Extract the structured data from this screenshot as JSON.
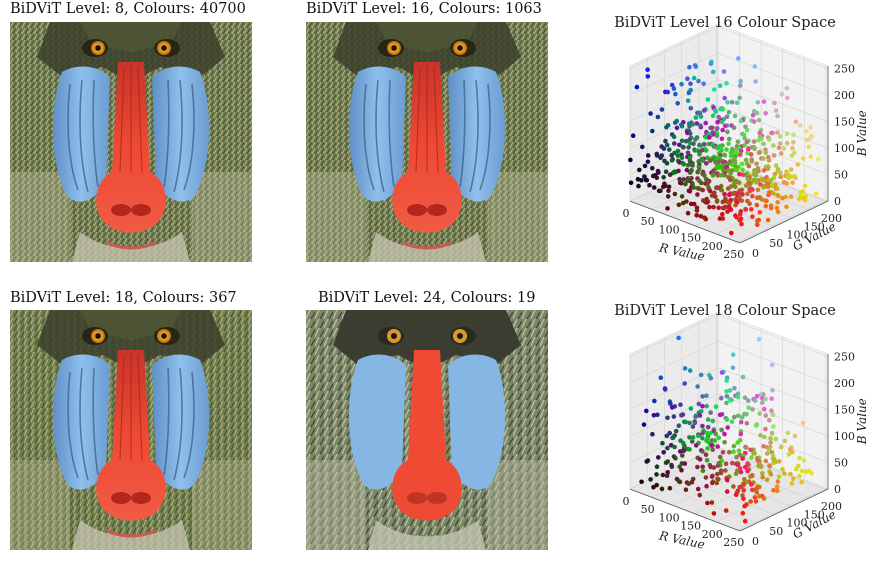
{
  "panels": [
    {
      "title": "BiDViT Level: 8, Colours: 40700",
      "variant": "fine"
    },
    {
      "title": "BiDViT Level: 16, Colours: 1063",
      "variant": "fine"
    },
    {
      "title": "BiDViT Level: 18, Colours: 367",
      "variant": "medium"
    },
    {
      "title": "BiDViT Level: 24, Colours: 19",
      "variant": "flat"
    }
  ],
  "colour_spaces": [
    {
      "title": "BiDViT Level 16 Colour Space",
      "type": "scatter3d",
      "xlabel": "R Value",
      "ylabel": "G Value",
      "zlabel": "B Value",
      "x_ticks": [
        "0",
        "50",
        "100",
        "150",
        "200",
        "250"
      ],
      "y_ticks": [
        "50",
        "100",
        "150",
        "200"
      ],
      "y_extra_tick": "0",
      "z_ticks": [
        "0",
        "50",
        "100",
        "150",
        "200",
        "250"
      ],
      "xlim": [
        0,
        255
      ],
      "ylim": [
        0,
        255
      ],
      "zlim": [
        0,
        255
      ],
      "point_count": 1063
    },
    {
      "title": "BiDViT Level 18 Colour Space",
      "type": "scatter3d",
      "xlabel": "R Value",
      "ylabel": "G Value",
      "zlabel": "B Value",
      "x_ticks": [
        "0",
        "50",
        "100",
        "150",
        "200",
        "250"
      ],
      "y_ticks": [
        "50",
        "100",
        "150",
        "200"
      ],
      "y_extra_tick": "0",
      "z_ticks": [
        "0",
        "50",
        "100",
        "150",
        "200",
        "250"
      ],
      "xlim": [
        0,
        255
      ],
      "ylim": [
        0,
        255
      ],
      "zlim": [
        0,
        255
      ],
      "point_count": 367
    }
  ],
  "colors": {
    "fur_base": "#6b7a4a",
    "fur_light": "#a9b08a",
    "nose_red": "#e8402e",
    "cheek_blue": "#7fb2e4",
    "eye_orange": "#e8a01e",
    "dark": "#2a2a20"
  }
}
